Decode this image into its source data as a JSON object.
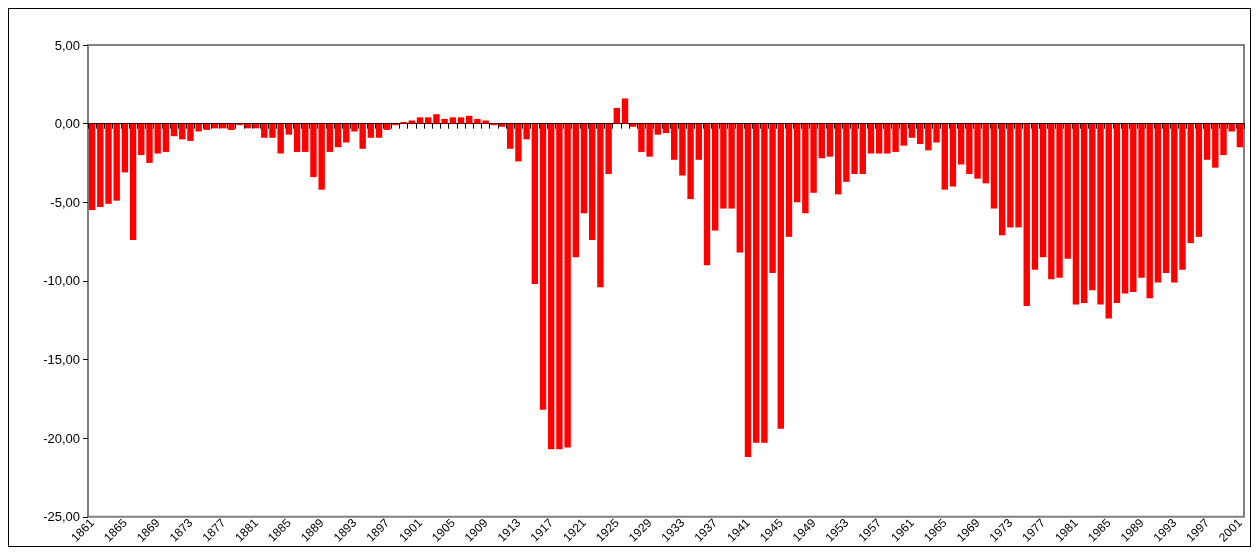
{
  "chart_data": {
    "type": "bar",
    "categories": [
      "1861",
      null,
      null,
      null,
      "1865",
      null,
      null,
      null,
      "1869",
      null,
      null,
      null,
      "1873",
      null,
      null,
      null,
      "1877",
      null,
      null,
      null,
      "1881",
      null,
      null,
      null,
      "1885",
      null,
      null,
      null,
      "1889",
      null,
      null,
      null,
      "1893",
      null,
      null,
      null,
      "1897",
      null,
      null,
      null,
      "1901",
      null,
      null,
      null,
      "1905",
      null,
      null,
      null,
      "1909",
      null,
      null,
      null,
      "1913",
      null,
      null,
      null,
      "1917",
      null,
      null,
      null,
      "1921",
      null,
      null,
      null,
      "1925",
      null,
      null,
      null,
      "1929",
      null,
      null,
      null,
      "1933",
      null,
      null,
      null,
      "1937",
      null,
      null,
      null,
      "1941",
      null,
      null,
      null,
      "1945",
      null,
      null,
      null,
      "1949",
      null,
      null,
      null,
      "1953",
      null,
      null,
      null,
      "1957",
      null,
      null,
      null,
      "1961",
      null,
      null,
      null,
      "1965",
      null,
      null,
      null,
      "1969",
      null,
      null,
      null,
      "1973",
      null,
      null,
      null,
      "1977",
      null,
      null,
      null,
      "1981",
      null,
      null,
      null,
      "1985",
      null,
      null,
      null,
      "1989",
      null,
      null,
      null,
      "1993",
      null,
      null,
      null,
      "1997",
      null,
      null,
      null,
      "2001"
    ],
    "values": [
      -5.5,
      -5.3,
      -5.1,
      -4.9,
      -3.1,
      -7.4,
      -2.0,
      -2.5,
      -1.9,
      -1.8,
      -0.8,
      -1.0,
      -1.1,
      -0.5,
      -0.4,
      -0.3,
      -0.3,
      -0.4,
      -0.1,
      -0.3,
      -0.3,
      -0.9,
      -0.9,
      -1.9,
      -0.7,
      -1.8,
      -1.8,
      -3.4,
      -4.2,
      -1.8,
      -1.5,
      -1.2,
      -0.5,
      -1.6,
      -0.9,
      -0.9,
      -0.4,
      -0.1,
      0.1,
      0.2,
      0.4,
      0.4,
      0.6,
      0.3,
      0.4,
      0.4,
      0.5,
      0.3,
      0.2,
      -0.1,
      -0.2,
      -1.6,
      -2.4,
      -1.0,
      -10.2,
      -18.2,
      -20.7,
      -20.7,
      -20.6,
      -8.5,
      -5.7,
      -7.4,
      -10.4,
      -3.2,
      1.0,
      1.6,
      -0.2,
      -1.8,
      -2.1,
      -0.7,
      -0.6,
      -2.3,
      -3.3,
      -4.8,
      -2.3,
      -9.0,
      -6.8,
      -5.4,
      -5.4,
      -8.2,
      -21.2,
      -20.3,
      -20.3,
      -9.5,
      -19.4,
      -7.2,
      -5.0,
      -5.7,
      -4.4,
      -2.2,
      -2.1,
      -4.5,
      -3.7,
      -3.2,
      -3.2,
      -1.9,
      -1.9,
      -1.9,
      -1.8,
      -1.4,
      -0.9,
      -1.3,
      -1.7,
      -1.2,
      -4.2,
      -4.0,
      -2.6,
      -3.2,
      -3.5,
      -3.8,
      -5.4,
      -7.1,
      -6.6,
      -6.6,
      -11.6,
      -9.3,
      -8.5,
      -9.9,
      -9.8,
      -8.6,
      -11.5,
      -11.4,
      -10.6,
      -11.5,
      -12.4,
      -11.4,
      -10.8,
      -10.7,
      -9.8,
      -11.1,
      -10.1,
      -9.5,
      -10.1,
      -9.3,
      -7.6,
      -7.2,
      -2.3,
      -2.8,
      -2.0,
      -0.5,
      -1.5
    ],
    "color": "#ff0000",
    "ylim": [
      -25,
      5
    ],
    "yticks": [
      {
        "value": -25,
        "label": "-25,00"
      },
      {
        "value": -20,
        "label": "-20,00"
      },
      {
        "value": -15,
        "label": "-15,00"
      },
      {
        "value": -10,
        "label": "-10,00"
      },
      {
        "value": -5,
        "label": "-5,00"
      },
      {
        "value": 0,
        "label": "0,00"
      },
      {
        "value": 5,
        "label": "5,00"
      }
    ]
  }
}
